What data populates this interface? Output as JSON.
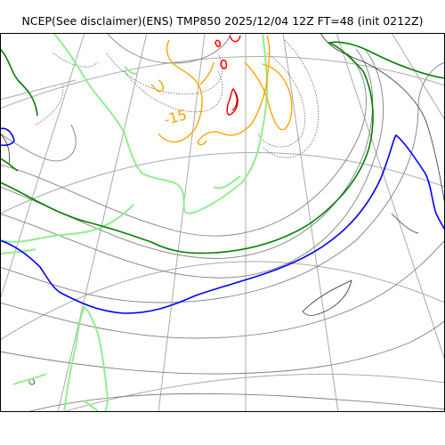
{
  "figure": {
    "title": "NCEP(See disclaimer)(ENS) TMP850 2025/12/04 12Z FT=48 (init 0212Z)"
  },
  "map": {
    "variable": "TMP850",
    "projection": "polar stereographic",
    "graticule": "on",
    "contour_label": "-15",
    "colors": {
      "coastline": "#000000",
      "graticule": "#aaaaaa",
      "isotherm_0C": "#0000ff",
      "isotherm_-3C": "#008000",
      "isotherm_-6C": "#90ee90",
      "isotherm_-15C": "#ffa500",
      "isotherm_-30C": "#ff0000",
      "isotherm_minor": "#808080"
    }
  }
}
